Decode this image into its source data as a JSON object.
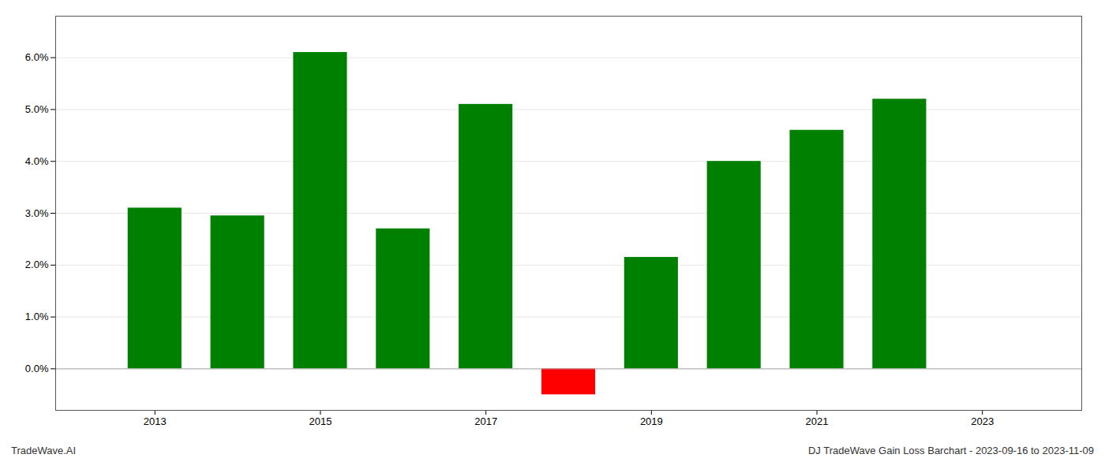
{
  "chart_data": {
    "type": "bar",
    "x": [
      2013,
      2014,
      2015,
      2016,
      2017,
      2018,
      2019,
      2020,
      2021,
      2022
    ],
    "values": [
      0.031,
      0.0295,
      0.061,
      0.027,
      0.051,
      -0.005,
      0.0215,
      0.04,
      0.046,
      0.052
    ],
    "colors": [
      "#008000",
      "#008000",
      "#008000",
      "#008000",
      "#008000",
      "#ff0000",
      "#008000",
      "#008000",
      "#008000",
      "#008000"
    ],
    "xlim": [
      2011.8,
      2024.2
    ],
    "xticks": [
      2013,
      2015,
      2017,
      2019,
      2021,
      2023
    ],
    "ylim": [
      -0.008,
      0.068
    ],
    "yticks": [
      {
        "value": 0.0,
        "label": "0.0%"
      },
      {
        "value": 0.01,
        "label": "1.0%"
      },
      {
        "value": 0.02,
        "label": "2.0%"
      },
      {
        "value": 0.03,
        "label": "3.0%"
      },
      {
        "value": 0.04,
        "label": "4.0%"
      },
      {
        "value": 0.05,
        "label": "5.0%"
      },
      {
        "value": 0.06,
        "label": "6.0%"
      }
    ],
    "grid": true,
    "annotations": [
      "TradeWave.AI",
      "DJ TradeWave Gain Loss Barchart - 2023-09-16 to 2023-11-09"
    ]
  }
}
